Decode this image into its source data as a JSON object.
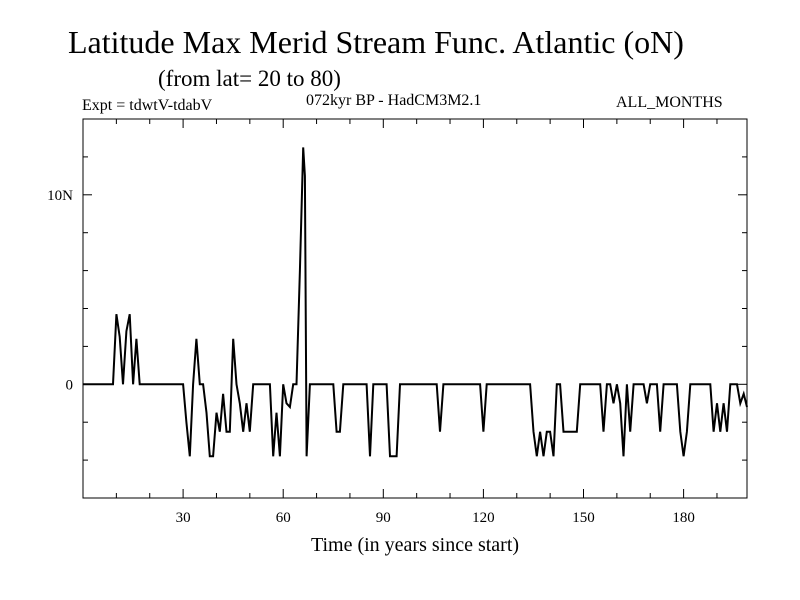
{
  "header": {
    "title": "Latitude Max Merid Stream Func. Atlantic (oN)",
    "subtitle": "(from lat= 20 to 80)",
    "expt": "Expt = tdwtV-tdabV",
    "run": "072kyr BP - HadCM3M2.1",
    "period": "ALL_MONTHS"
  },
  "chart_data": {
    "type": "line",
    "title": "Latitude Max Merid Stream Func. Atlantic (oN)",
    "subtitle": "(from lat= 20 to 80)",
    "xlabel": "Time (in years since start)",
    "ylabel": "",
    "xlim": [
      0,
      199
    ],
    "ylim": [
      -6,
      14
    ],
    "x_ticks": [
      30,
      60,
      90,
      120,
      150,
      180
    ],
    "x_tick_labels": [
      "30",
      "60",
      "90",
      "120",
      "150",
      "180"
    ],
    "y_ticks": [
      0,
      10
    ],
    "y_tick_labels": [
      "0",
      "10N"
    ],
    "grid": false,
    "series": [
      {
        "name": "Latitude Max Merid Stream Func.",
        "points": [
          [
            0,
            0
          ],
          [
            9,
            0
          ],
          [
            10,
            3.7
          ],
          [
            11,
            2.5
          ],
          [
            12,
            0
          ],
          [
            13,
            2.8
          ],
          [
            14,
            3.7
          ],
          [
            15,
            0
          ],
          [
            16,
            2.4
          ],
          [
            17,
            0
          ],
          [
            30,
            0
          ],
          [
            31,
            -2
          ],
          [
            32,
            -3.8
          ],
          [
            33,
            0
          ],
          [
            34,
            2.4
          ],
          [
            35,
            0
          ],
          [
            36,
            0
          ],
          [
            37,
            -1.5
          ],
          [
            38,
            -3.8
          ],
          [
            39,
            -3.8
          ],
          [
            40,
            -1.5
          ],
          [
            41,
            -2.5
          ],
          [
            42,
            -0.5
          ],
          [
            43,
            -2.5
          ],
          [
            44,
            -2.5
          ],
          [
            45,
            2.4
          ],
          [
            46,
            0
          ],
          [
            47,
            -1
          ],
          [
            48,
            -2.5
          ],
          [
            49,
            -1
          ],
          [
            50,
            -2.5
          ],
          [
            51,
            0
          ],
          [
            56,
            0
          ],
          [
            57,
            -3.8
          ],
          [
            58,
            -1.5
          ],
          [
            59,
            -3.8
          ],
          [
            60,
            0
          ],
          [
            61,
            -1
          ],
          [
            62,
            -1.2
          ],
          [
            63,
            0
          ],
          [
            64,
            0
          ],
          [
            65,
            6
          ],
          [
            66,
            12.5
          ],
          [
            66.5,
            11
          ],
          [
            67,
            -3.8
          ],
          [
            68,
            0
          ],
          [
            75,
            0
          ],
          [
            76,
            -2.5
          ],
          [
            77,
            -2.5
          ],
          [
            78,
            0
          ],
          [
            85,
            0
          ],
          [
            86,
            -3.8
          ],
          [
            87,
            0
          ],
          [
            91,
            0
          ],
          [
            92,
            -3.8
          ],
          [
            93,
            -3.8
          ],
          [
            94,
            -3.8
          ],
          [
            95,
            0
          ],
          [
            106,
            0
          ],
          [
            107,
            -2.5
          ],
          [
            108,
            0
          ],
          [
            119,
            0
          ],
          [
            120,
            -2.5
          ],
          [
            121,
            0
          ],
          [
            134,
            0
          ],
          [
            135,
            -2.5
          ],
          [
            136,
            -3.8
          ],
          [
            137,
            -2.5
          ],
          [
            138,
            -3.8
          ],
          [
            139,
            -2.5
          ],
          [
            140,
            -2.5
          ],
          [
            141,
            -3.8
          ],
          [
            142,
            0
          ],
          [
            143,
            0
          ],
          [
            144,
            -2.5
          ],
          [
            145,
            -2.5
          ],
          [
            146,
            -2.5
          ],
          [
            147,
            -2.5
          ],
          [
            148,
            -2.5
          ],
          [
            149,
            0
          ],
          [
            155,
            0
          ],
          [
            156,
            -2.5
          ],
          [
            157,
            0
          ],
          [
            158,
            0
          ],
          [
            159,
            -1
          ],
          [
            160,
            0
          ],
          [
            161,
            -1
          ],
          [
            162,
            -3.8
          ],
          [
            163,
            0
          ],
          [
            164,
            -2.5
          ],
          [
            165,
            0
          ],
          [
            168,
            0
          ],
          [
            169,
            -1
          ],
          [
            170,
            0
          ],
          [
            172,
            0
          ],
          [
            173,
            -2.5
          ],
          [
            174,
            0
          ],
          [
            178,
            0
          ],
          [
            179,
            -2.5
          ],
          [
            180,
            -3.8
          ],
          [
            181,
            -2.5
          ],
          [
            182,
            0
          ],
          [
            188,
            0
          ],
          [
            189,
            -2.5
          ],
          [
            190,
            -1
          ],
          [
            191,
            -2.5
          ],
          [
            192,
            -1
          ],
          [
            193,
            -2.5
          ],
          [
            194,
            0
          ],
          [
            195,
            0
          ],
          [
            196,
            0
          ],
          [
            197,
            -1
          ],
          [
            198,
            -0.5
          ],
          [
            199,
            -1.2
          ]
        ]
      }
    ]
  }
}
